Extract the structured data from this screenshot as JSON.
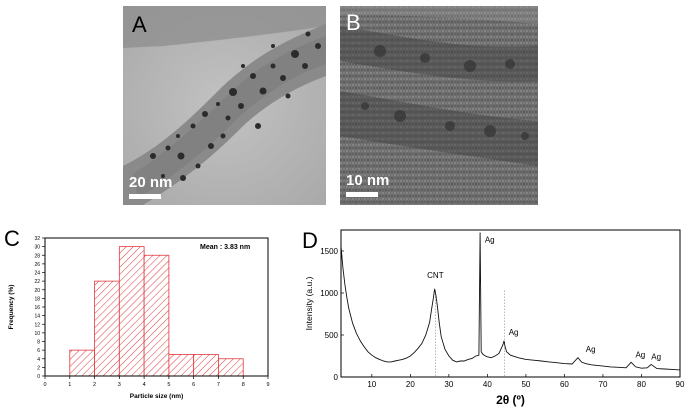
{
  "panels": {
    "a": {
      "label": "A",
      "scale": "20 nm"
    },
    "b": {
      "label": "B",
      "scale": "10 nm"
    },
    "c": {
      "label": "C"
    },
    "d": {
      "label": "D"
    }
  },
  "chart_data": [
    {
      "type": "bar",
      "panel": "C",
      "title": "",
      "annotation": "Mean : 3.83 nm",
      "xlabel": "Particle size (nm)",
      "ylabel": "Frequency (%)",
      "bins": [
        [
          1,
          2
        ],
        [
          2,
          3
        ],
        [
          3,
          4
        ],
        [
          4,
          5
        ],
        [
          5,
          6
        ],
        [
          6,
          7
        ],
        [
          7,
          8
        ]
      ],
      "values": [
        6,
        22,
        30,
        28,
        5,
        5,
        4
      ],
      "xlim": [
        0,
        9
      ],
      "ylim": [
        0,
        32
      ],
      "xticks": [
        "0",
        "1",
        "2",
        "3",
        "4",
        "5",
        "6",
        "7",
        "8",
        "9"
      ],
      "yticks": [
        "0",
        "2",
        "4",
        "6",
        "8",
        "10",
        "12",
        "14",
        "16",
        "18",
        "20",
        "22",
        "24",
        "26",
        "28",
        "30",
        "32"
      ],
      "bar_color": "#e0393e",
      "bar_fill": "hatched"
    },
    {
      "type": "line",
      "panel": "D",
      "xlabel": "2θ (º)",
      "ylabel": "Intensity (a.u.)",
      "xlim": [
        2,
        90
      ],
      "ylim": [
        0,
        1750
      ],
      "xticks": [
        "10",
        "20",
        "30",
        "40",
        "50",
        "60",
        "70",
        "80",
        "90"
      ],
      "yticks": [
        "0",
        "500",
        "1000",
        "1500"
      ],
      "series": [
        {
          "x": [
            2,
            2.5,
            3,
            3.5,
            4,
            5,
            6,
            7,
            8,
            9,
            10,
            11,
            12,
            13,
            14,
            15,
            16,
            17,
            18,
            19,
            20,
            21,
            22,
            23,
            24,
            25,
            25.5,
            26,
            26.3,
            26.6,
            27,
            27.5,
            28,
            29,
            30,
            31,
            32,
            33,
            34,
            35,
            36,
            37,
            37.8,
            38.1,
            38.4,
            38.8,
            39.5,
            40,
            41,
            42,
            43,
            44,
            44.3,
            44.6,
            45,
            46,
            48,
            50,
            52,
            54,
            56,
            58,
            60,
            62,
            63.5,
            64.5,
            65.5,
            67,
            70,
            72,
            74,
            76,
            77.3,
            78.5,
            80,
            81.5,
            82.5,
            84,
            86,
            88,
            90
          ],
          "y": [
            1560,
            1300,
            1100,
            950,
            820,
            640,
            520,
            430,
            360,
            300,
            260,
            230,
            210,
            190,
            180,
            180,
            190,
            200,
            210,
            225,
            250,
            290,
            340,
            400,
            500,
            650,
            800,
            950,
            1050,
            980,
            850,
            650,
            480,
            330,
            250,
            200,
            180,
            190,
            190,
            210,
            220,
            250,
            260,
            1720,
            300,
            270,
            250,
            240,
            230,
            250,
            280,
            380,
            430,
            360,
            300,
            260,
            230,
            210,
            200,
            190,
            180,
            170,
            160,
            155,
            230,
            175,
            160,
            145,
            130,
            120,
            115,
            110,
            175,
            120,
            105,
            110,
            150,
            100,
            95,
            90,
            85
          ]
        }
      ],
      "reference_lines_x": [
        26.5,
        44.5
      ],
      "peak_annotations": [
        {
          "text": "CNT",
          "x": 26.5
        },
        {
          "text": "Ag",
          "x": 38.3
        },
        {
          "text": "Ag",
          "x": 44.5
        },
        {
          "text": "Ag",
          "x": 64.5
        },
        {
          "text": "Ag",
          "x": 77.4
        },
        {
          "text": "Ag",
          "x": 81.5
        }
      ]
    }
  ]
}
